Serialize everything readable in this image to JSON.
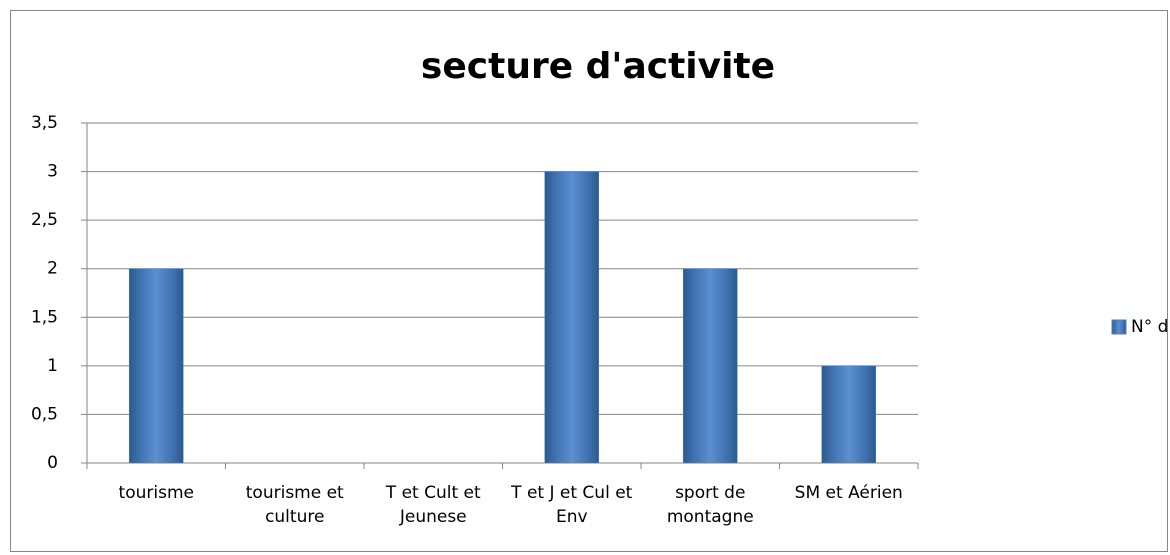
{
  "chart_data": {
    "type": "bar",
    "title": "secture d'activite",
    "categories": [
      "tourisme",
      "tourisme et culture",
      "T et Cult et Jeunese",
      "T et J et Cul et Env",
      "sport de montagne",
      "SM et Aérien"
    ],
    "series": [
      {
        "name": "N° d'association",
        "color": "#4f81bd",
        "values": [
          2,
          0,
          0,
          3,
          2,
          1
        ]
      }
    ],
    "ylim": [
      0,
      3.5
    ],
    "yticks": [
      0,
      {
        "value": 0.5,
        "label": "0,5"
      },
      1,
      {
        "value": 1.5,
        "label": "1,5"
      },
      2,
      {
        "value": 2.5,
        "label": "2,5"
      },
      3,
      {
        "value": 3.5,
        "label": "3,5"
      }
    ],
    "grid": true,
    "legend": "right"
  }
}
